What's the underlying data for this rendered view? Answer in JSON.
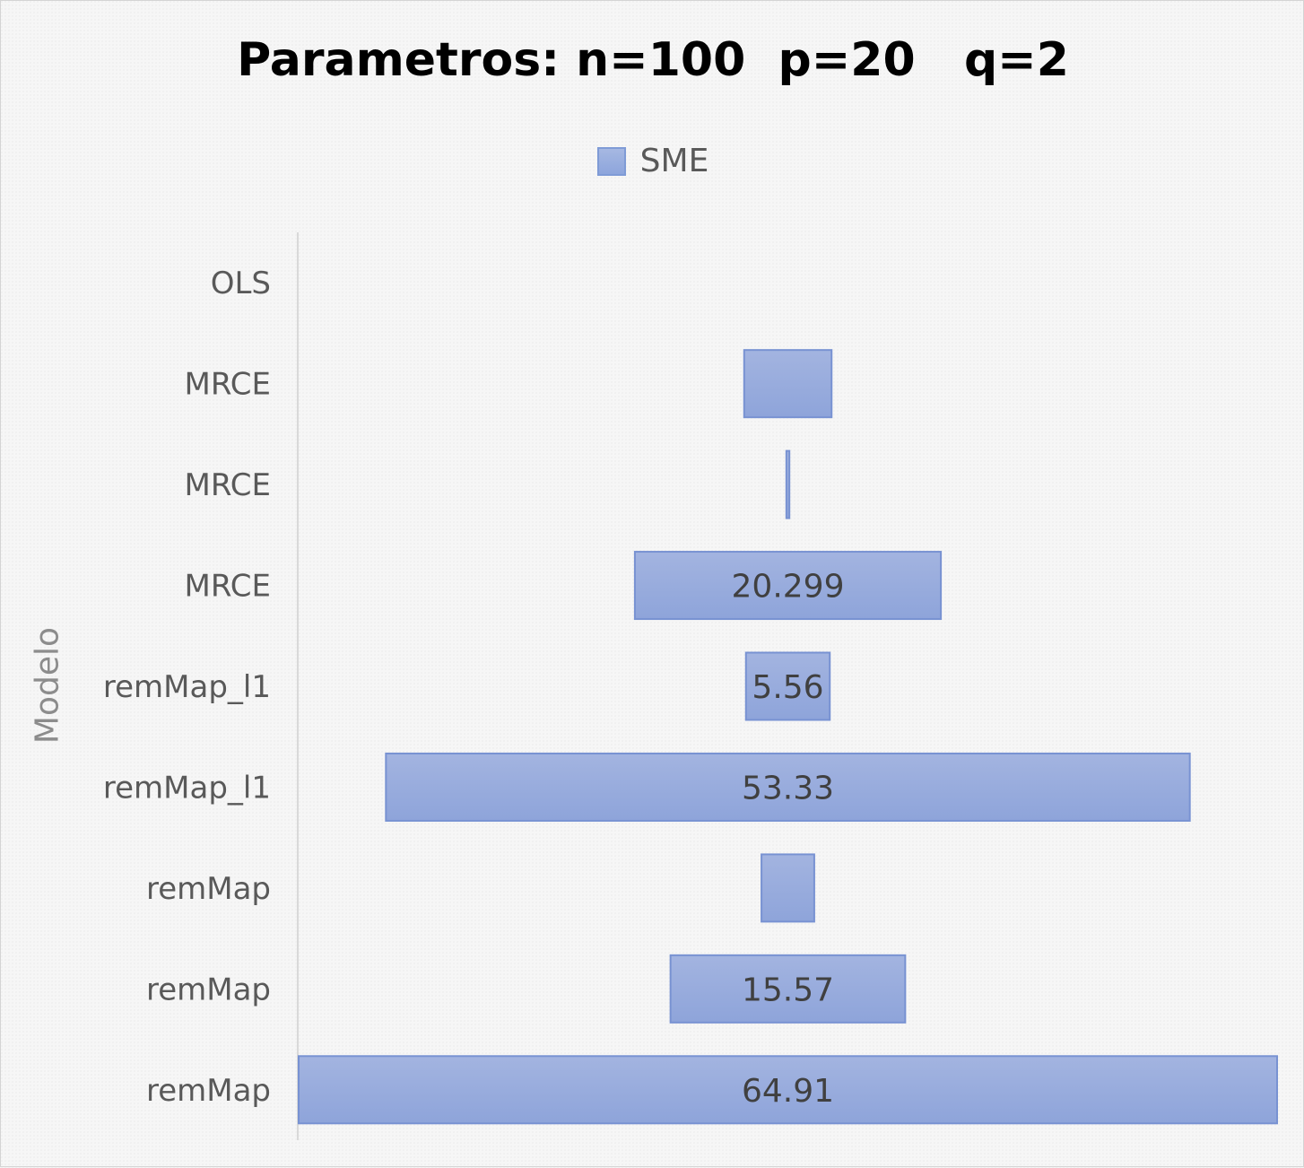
{
  "chart_data": {
    "type": "bar",
    "orientation": "horizontal",
    "title": "Parametros: n=100  p=20   q=2",
    "ylabel": "Modelo",
    "xlabel": "",
    "categories": [
      "OLS",
      "MRCE",
      "MRCE",
      "MRCE",
      "remMap_l1",
      "remMap_l1",
      "remMap",
      "remMap",
      "remMap"
    ],
    "series": [
      {
        "name": "SME",
        "values": [
          0,
          5.8,
          0.2,
          20.299,
          5.56,
          53.33,
          3.5,
          15.57,
          64.91
        ],
        "labels": [
          "",
          "",
          "",
          "20.299",
          "5.56",
          "53.33",
          "",
          "15.57",
          "64.91"
        ]
      }
    ],
    "xlim": [
      0,
      64.91
    ],
    "bar_alignment": "centered",
    "grid": false,
    "legend_position": "top",
    "x_axis_visible": false,
    "colors": {
      "bar_fill": "#8fa6dc",
      "bar_edge": "#7892d2",
      "axis_line": "#d9d9d9",
      "tick_label": "#595959",
      "data_label": "#404040"
    }
  }
}
